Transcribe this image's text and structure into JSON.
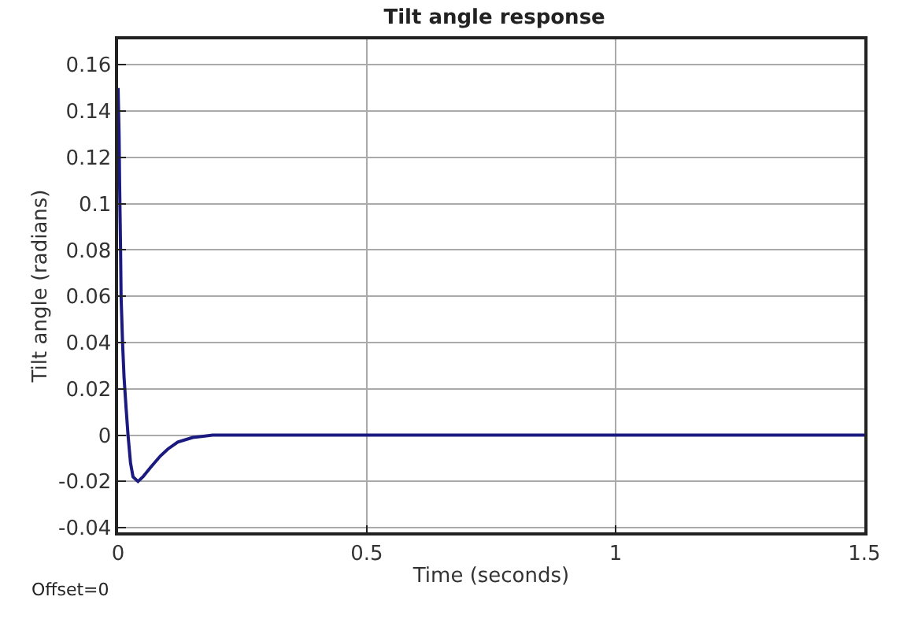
{
  "chart_data": {
    "type": "line",
    "title": "Tilt angle response",
    "xlabel": "Time (seconds)",
    "ylabel": "Tilt angle (radians)",
    "annotations": [
      "Offset=0"
    ],
    "x": [
      0,
      0.002,
      0.003,
      0.005,
      0.006,
      0.009,
      0.012,
      0.016,
      0.02,
      0.025,
      0.03,
      0.04,
      0.05,
      0.065,
      0.085,
      0.1,
      0.12,
      0.15,
      0.19,
      0.3,
      0.6,
      1.0,
      1.5
    ],
    "series": [
      {
        "color": "#1a1a80",
        "values": [
          0.15,
          0.13,
          0.11,
          0.08,
          0.06,
          0.04,
          0.025,
          0.012,
          0.0,
          -0.012,
          -0.018,
          -0.02,
          -0.018,
          -0.014,
          -0.009,
          -0.006,
          -0.003,
          -0.001,
          0,
          0,
          0,
          0,
          0
        ]
      }
    ],
    "xlim": [
      0,
      1.5
    ],
    "xticks": [
      0,
      0.5,
      1,
      1.5
    ],
    "ylim": [
      -0.042,
      0.171
    ],
    "yticks": [
      -0.04,
      -0.02,
      0,
      0.02,
      0.04,
      0.06,
      0.08,
      0.1,
      0.12,
      0.14,
      0.16
    ],
    "grid": true
  }
}
